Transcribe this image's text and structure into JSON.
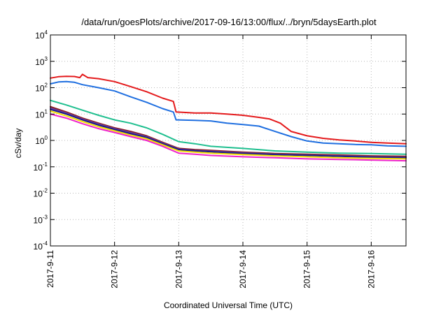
{
  "chart_data": {
    "type": "line",
    "title": "/data/run/goesPlots/archive/2017-09-16/13:00/flux/../bryn/5daysEarth.plot",
    "xlabel": "Coordinated Universal Time (UTC)",
    "ylabel": "cSv/day",
    "yscale": "log",
    "ylim": [
      0.0001,
      10000
    ],
    "yticks": [
      {
        "base": "10",
        "exp": "-4",
        "value": 0.0001
      },
      {
        "base": "10",
        "exp": "-3",
        "value": 0.001
      },
      {
        "base": "10",
        "exp": "-2",
        "value": 0.01
      },
      {
        "base": "10",
        "exp": "-1",
        "value": 0.1
      },
      {
        "base": "10",
        "exp": "0",
        "value": 1
      },
      {
        "base": "10",
        "exp": "1",
        "value": 10
      },
      {
        "base": "10",
        "exp": "2",
        "value": 100
      },
      {
        "base": "10",
        "exp": "3",
        "value": 1000
      },
      {
        "base": "10",
        "exp": "4",
        "value": 10000
      }
    ],
    "xlim": [
      "2017-09-11 00:00",
      "2017-09-16 13:00"
    ],
    "xticks": [
      "2017-9-11",
      "2017-9-12",
      "2017-9-13",
      "2017-9-14",
      "2017-9-15",
      "2017-9-16"
    ],
    "grid": true,
    "series": [
      {
        "color": "#e41a1c",
        "x": [
          "2017-09-11 00:00",
          "2017-09-11 03:00",
          "2017-09-11 06:00",
          "2017-09-11 09:00",
          "2017-09-11 11:00",
          "2017-09-11 12:00",
          "2017-09-11 14:00",
          "2017-09-11 18:00",
          "2017-09-12 00:00",
          "2017-09-12 06:00",
          "2017-09-12 12:00",
          "2017-09-12 18:00",
          "2017-09-12 22:00",
          "2017-09-12 23:00",
          "2017-09-13 06:00",
          "2017-09-13 12:00",
          "2017-09-13 18:00",
          "2017-09-14 00:00",
          "2017-09-14 06:00",
          "2017-09-14 10:00",
          "2017-09-14 14:00",
          "2017-09-14 18:00",
          "2017-09-15 00:00",
          "2017-09-15 06:00",
          "2017-09-15 12:00",
          "2017-09-15 18:00",
          "2017-09-16 00:00",
          "2017-09-16 06:00",
          "2017-09-16 13:00"
        ],
        "values": [
          230,
          260,
          270,
          265,
          240,
          320,
          240,
          220,
          170,
          110,
          70,
          40,
          30,
          12,
          11,
          11,
          10,
          9,
          7.5,
          6.5,
          4.5,
          2.2,
          1.5,
          1.2,
          1.05,
          0.95,
          0.85,
          0.8,
          0.75
        ]
      },
      {
        "color": "#1f6fe0",
        "x": [
          "2017-09-11 00:00",
          "2017-09-11 03:00",
          "2017-09-11 06:00",
          "2017-09-11 09:00",
          "2017-09-11 12:00",
          "2017-09-11 18:00",
          "2017-09-12 00:00",
          "2017-09-12 06:00",
          "2017-09-12 12:00",
          "2017-09-12 18:00",
          "2017-09-12 22:00",
          "2017-09-12 23:00",
          "2017-09-13 06:00",
          "2017-09-13 12:00",
          "2017-09-13 18:00",
          "2017-09-14 00:00",
          "2017-09-14 06:00",
          "2017-09-14 12:00",
          "2017-09-14 18:00",
          "2017-09-15 00:00",
          "2017-09-15 06:00",
          "2017-09-15 12:00",
          "2017-09-15 18:00",
          "2017-09-16 00:00",
          "2017-09-16 06:00",
          "2017-09-16 13:00"
        ],
        "values": [
          140,
          165,
          170,
          160,
          130,
          100,
          75,
          45,
          28,
          16,
          12,
          6,
          5.8,
          5.5,
          4.5,
          4,
          3.5,
          2.2,
          1.4,
          0.95,
          0.8,
          0.75,
          0.7,
          0.68,
          0.62,
          0.6
        ]
      },
      {
        "color": "#1fbf8f",
        "x": [
          "2017-09-11 00:00",
          "2017-09-11 06:00",
          "2017-09-11 12:00",
          "2017-09-11 18:00",
          "2017-09-12 00:00",
          "2017-09-12 06:00",
          "2017-09-12 12:00",
          "2017-09-12 18:00",
          "2017-09-13 00:00",
          "2017-09-13 06:00",
          "2017-09-13 12:00",
          "2017-09-14 00:00",
          "2017-09-14 12:00",
          "2017-09-15 00:00",
          "2017-09-15 12:00",
          "2017-09-16 00:00",
          "2017-09-16 13:00"
        ],
        "values": [
          33,
          22,
          14,
          9,
          6,
          4.5,
          3,
          1.7,
          0.9,
          0.75,
          0.6,
          0.5,
          0.4,
          0.36,
          0.33,
          0.32,
          0.3
        ]
      },
      {
        "color": "#8b1a1a",
        "x": [
          "2017-09-11 00:00",
          "2017-09-11 06:00",
          "2017-09-11 12:00",
          "2017-09-11 18:00",
          "2017-09-12 00:00",
          "2017-09-12 06:00",
          "2017-09-12 12:00",
          "2017-09-12 18:00",
          "2017-09-13 00:00",
          "2017-09-13 06:00",
          "2017-09-13 12:00",
          "2017-09-14 00:00",
          "2017-09-14 12:00",
          "2017-09-15 00:00",
          "2017-09-15 12:00",
          "2017-09-16 00:00",
          "2017-09-16 13:00"
        ],
        "values": [
          19,
          12,
          7,
          4.5,
          3,
          2.2,
          1.5,
          0.85,
          0.5,
          0.45,
          0.42,
          0.36,
          0.32,
          0.3,
          0.28,
          0.26,
          0.25
        ]
      },
      {
        "color": "#6a3d9a",
        "x": [
          "2017-09-11 00:00",
          "2017-09-11 06:00",
          "2017-09-11 12:00",
          "2017-09-11 18:00",
          "2017-09-12 00:00",
          "2017-09-12 06:00",
          "2017-09-12 12:00",
          "2017-09-12 18:00",
          "2017-09-13 00:00",
          "2017-09-13 06:00",
          "2017-09-13 12:00",
          "2017-09-14 00:00",
          "2017-09-14 12:00",
          "2017-09-15 00:00",
          "2017-09-15 12:00",
          "2017-09-16 00:00",
          "2017-09-16 13:00"
        ],
        "values": [
          17,
          11,
          6.5,
          4.2,
          2.8,
          2,
          1.4,
          0.8,
          0.47,
          0.42,
          0.39,
          0.34,
          0.3,
          0.28,
          0.26,
          0.24,
          0.23
        ]
      },
      {
        "color": "#1a1a8a",
        "x": [
          "2017-09-11 00:00",
          "2017-09-11 06:00",
          "2017-09-11 12:00",
          "2017-09-11 18:00",
          "2017-09-12 00:00",
          "2017-09-12 06:00",
          "2017-09-12 12:00",
          "2017-09-12 18:00",
          "2017-09-13 00:00",
          "2017-09-13 06:00",
          "2017-09-13 12:00",
          "2017-09-14 00:00",
          "2017-09-14 12:00",
          "2017-09-15 00:00",
          "2017-09-15 12:00",
          "2017-09-16 00:00",
          "2017-09-16 13:00"
        ],
        "values": [
          15,
          10,
          6,
          3.8,
          2.6,
          1.8,
          1.3,
          0.75,
          0.45,
          0.4,
          0.37,
          0.32,
          0.29,
          0.27,
          0.25,
          0.23,
          0.22
        ]
      },
      {
        "color": "#f2e000",
        "x": [
          "2017-09-11 00:00",
          "2017-09-11 06:00",
          "2017-09-11 12:00",
          "2017-09-11 18:00",
          "2017-09-12 00:00",
          "2017-09-12 06:00",
          "2017-09-12 12:00",
          "2017-09-12 18:00",
          "2017-09-13 00:00",
          "2017-09-13 06:00",
          "2017-09-13 12:00",
          "2017-09-14 00:00",
          "2017-09-14 12:00",
          "2017-09-15 00:00",
          "2017-09-15 12:00",
          "2017-09-16 00:00",
          "2017-09-16 13:00"
        ],
        "values": [
          13,
          8.5,
          5.2,
          3.3,
          2.3,
          1.6,
          1.15,
          0.68,
          0.4,
          0.36,
          0.33,
          0.29,
          0.26,
          0.24,
          0.22,
          0.21,
          0.2
        ]
      },
      {
        "color": "#ee22cc",
        "x": [
          "2017-09-11 00:00",
          "2017-09-11 06:00",
          "2017-09-11 12:00",
          "2017-09-11 18:00",
          "2017-09-12 00:00",
          "2017-09-12 06:00",
          "2017-09-12 12:00",
          "2017-09-12 18:00",
          "2017-09-13 00:00",
          "2017-09-13 06:00",
          "2017-09-13 12:00",
          "2017-09-14 00:00",
          "2017-09-14 12:00",
          "2017-09-15 00:00",
          "2017-09-15 12:00",
          "2017-09-16 00:00",
          "2017-09-16 13:00"
        ],
        "values": [
          10,
          7,
          4.3,
          2.8,
          2,
          1.4,
          1,
          0.6,
          0.33,
          0.3,
          0.27,
          0.24,
          0.22,
          0.2,
          0.19,
          0.18,
          0.17
        ]
      }
    ]
  }
}
